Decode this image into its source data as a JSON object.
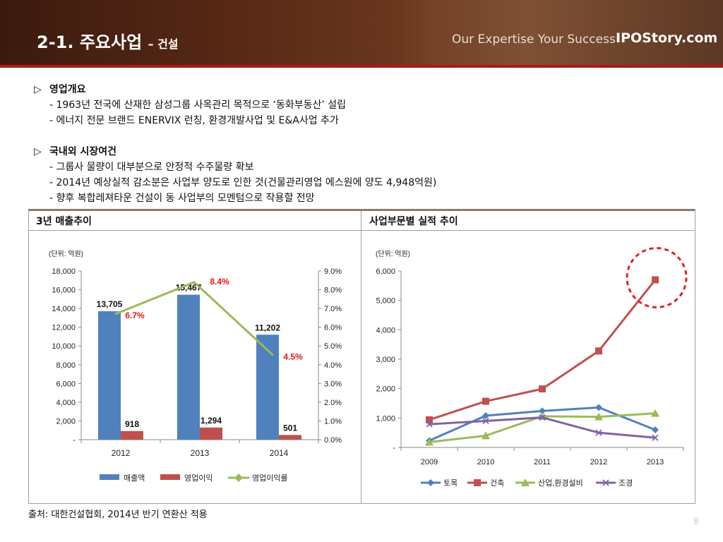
{
  "header": {
    "title": "2-1. 주요사업",
    "subtitle": "– 건설",
    "slogan": "Our Expertise Your Success",
    "brand": "IPOStory.com"
  },
  "sections": [
    {
      "title": "영업개요",
      "lines": [
        "- 1963년 전국에 산재한 삼성그룹 사옥관리 목적으로 ‘동화부동산’ 설립",
        "- 에너지 전문 브랜드 ENERVIX 런칭, 환경개발사업 및 E&A사업 추가"
      ]
    },
    {
      "title": "국내외 시장여건",
      "lines": [
        "- 그룹사 물량이 대부분으로 안정적 수주물량 확보",
        "- 2014년 예상실적 감소분은 사업부 양도로 인한 것(건물관리영업 에스원에 양도 4,948억원)",
        "- 향후 복합레져타운 건설이 동 사업부의 모멘텀으로 작용할 전망"
      ]
    }
  ],
  "panels": {
    "left_title": "3년 매출추이",
    "right_title": "사업부문별 실적 추이"
  },
  "chart_data": [
    {
      "type": "bar",
      "unit": "(단위: 억원)",
      "categories": [
        "2012",
        "2013",
        "2014"
      ],
      "series": [
        {
          "name": "매출액",
          "values": [
            13705,
            15467,
            11202
          ],
          "labels": [
            "13,705",
            "15,467",
            "11,202"
          ],
          "color": "#4f81bd"
        },
        {
          "name": "영업이익",
          "values": [
            918,
            1294,
            501
          ],
          "labels": [
            "918",
            "1,294",
            "501"
          ],
          "color": "#c0504d"
        },
        {
          "name": "영업이익률",
          "type": "line",
          "axis": "right",
          "values": [
            6.7,
            8.4,
            4.5
          ],
          "labels": [
            "6.7%",
            "8.4%",
            "4.5%"
          ],
          "color": "#9bbb59"
        }
      ],
      "ylim": [
        0,
        18000
      ],
      "y_ticks": [
        "-",
        "2,000",
        "4,000",
        "6,000",
        "8,000",
        "10,000",
        "12,000",
        "14,000",
        "16,000",
        "18,000"
      ],
      "y2lim": [
        0,
        9
      ],
      "y2_ticks": [
        "0.0%",
        "1.0%",
        "2.0%",
        "3.0%",
        "4.0%",
        "5.0%",
        "6.0%",
        "7.0%",
        "8.0%",
        "9.0%"
      ],
      "legend": "bottom",
      "grid": false
    },
    {
      "type": "line",
      "unit": "(단위: 억원)",
      "categories": [
        "2009",
        "2010",
        "2011",
        "2012",
        "2013"
      ],
      "series": [
        {
          "name": "토목",
          "values": [
            230,
            1080,
            1240,
            1360,
            600
          ],
          "color": "#4f81bd",
          "marker": "diamond"
        },
        {
          "name": "건축",
          "values": [
            940,
            1570,
            1990,
            3280,
            5700
          ],
          "color": "#c0504d",
          "marker": "square"
        },
        {
          "name": "산업,환경설비",
          "values": [
            180,
            400,
            1060,
            1040,
            1160
          ],
          "color": "#9bbb59",
          "marker": "triangle"
        },
        {
          "name": "조경",
          "values": [
            790,
            900,
            1020,
            500,
            330
          ],
          "color": "#8064a2",
          "marker": "x"
        }
      ],
      "ylim": [
        0,
        6000
      ],
      "y_ticks": [
        "-",
        "1,000",
        "2,000",
        "3,000",
        "4,000",
        "5,000",
        "6,000"
      ],
      "highlight": "2013 건축",
      "highlight_color": "#e02020",
      "legend": "bottom",
      "grid": false
    }
  ],
  "source": "출처: 대한건설협회, 2014년 반기 연환산 적용",
  "page_number": "8"
}
